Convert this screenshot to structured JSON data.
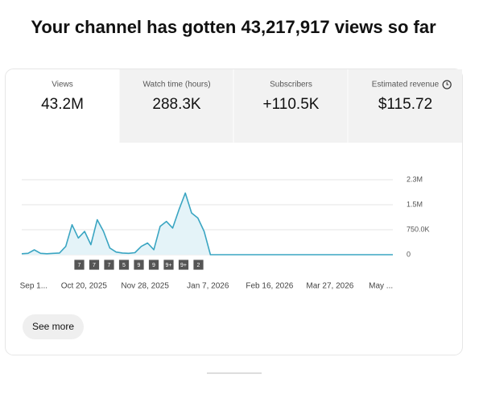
{
  "title": "Your channel has gotten 43,217,917 views so far",
  "tabs": [
    {
      "label": "Views",
      "value": "43.2M"
    },
    {
      "label": "Watch time (hours)",
      "value": "288.3K"
    },
    {
      "label": "Subscribers",
      "value": "+110.5K"
    },
    {
      "label": "Estimated revenue",
      "value": "$115.72"
    }
  ],
  "chart_data": {
    "type": "line",
    "color": "#3aa5c2",
    "fill": "#e4f3f8",
    "grid": true,
    "values": [
      30000,
      40000,
      145000,
      40000,
      30000,
      40000,
      50000,
      250000,
      900000,
      500000,
      700000,
      300000,
      1050000,
      700000,
      200000,
      80000,
      50000,
      40000,
      60000,
      250000,
      350000,
      150000,
      850000,
      1000000,
      800000,
      1350000,
      1850000,
      1250000,
      1100000,
      700000,
      0,
      0,
      0,
      0,
      0,
      0,
      0,
      0,
      0,
      0,
      0,
      0,
      0,
      0,
      0,
      0,
      0,
      0,
      0,
      0,
      0,
      0,
      0,
      0,
      0,
      0,
      0,
      0,
      0,
      0
    ],
    "xlim": [
      0,
      59
    ],
    "xticks": [
      {
        "value": 1.9,
        "label": "Sep 1..."
      },
      {
        "value": 9.9,
        "label": "Oct 20, 2025"
      },
      {
        "value": 19.6,
        "label": "Nov 28, 2025"
      },
      {
        "value": 29.6,
        "label": "Jan 7, 2026"
      },
      {
        "value": 39.4,
        "label": "Feb 16, 2026"
      },
      {
        "value": 49.0,
        "label": "Mar 27, 2026"
      },
      {
        "value": 57.1,
        "label": "May ..."
      }
    ],
    "ylim": [
      0,
      2250000
    ],
    "yticks": [
      0,
      {
        "value": 750000,
        "label": "750.0K"
      },
      {
        "value": 1500000,
        "label": "1.5M"
      },
      {
        "value": 2250000,
        "label": "2.3M"
      }
    ],
    "annotations": [
      "7",
      "7",
      "7",
      "5",
      "9",
      "9",
      "9+",
      "9+",
      "2"
    ]
  },
  "button": "See more"
}
